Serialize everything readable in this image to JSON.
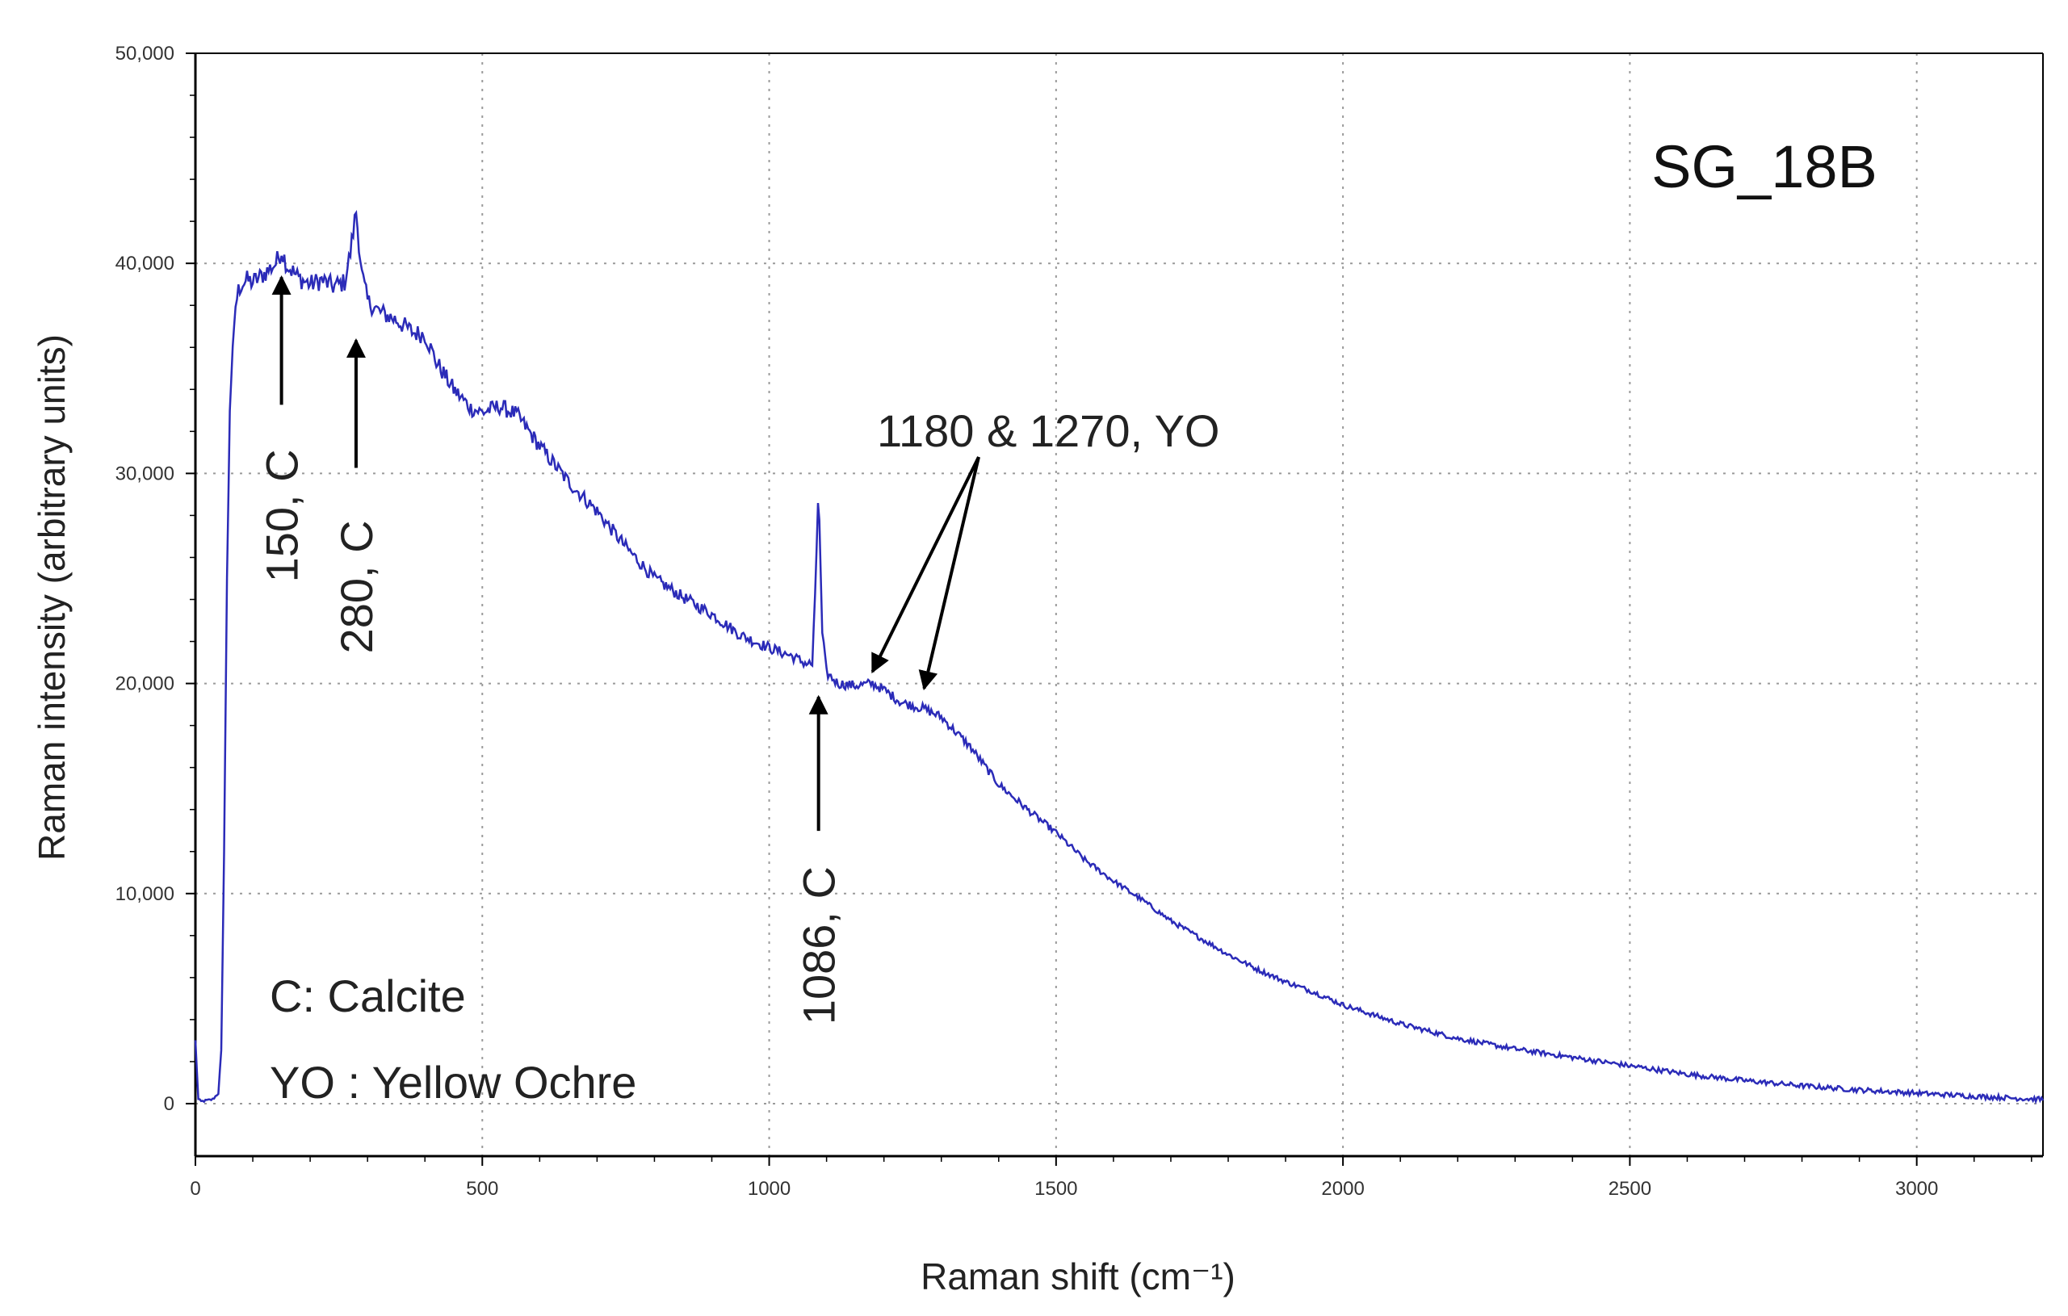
{
  "chart_data": {
    "type": "line",
    "title": "SG_18B",
    "xlabel": "Raman shift (cm⁻¹)",
    "ylabel": "Raman intensity (arbitrary units)",
    "xlim": [
      0,
      3220
    ],
    "ylim": [
      -2500,
      50000
    ],
    "xticks": [
      0,
      500,
      1000,
      1500,
      2000,
      2500,
      3000
    ],
    "xtick_labels": [
      "0",
      "500",
      "1000",
      "1500",
      "2000",
      "2500",
      "3000"
    ],
    "yticks": [
      0,
      10000,
      20000,
      30000,
      40000,
      50000
    ],
    "ytick_labels": [
      "0",
      "10,000",
      "20,000",
      "30,000",
      "40,000",
      "50,000"
    ],
    "grid": true,
    "line_color": "#2b2bb8",
    "series": [
      {
        "x": [
          0,
          5,
          10,
          20,
          30,
          40,
          45,
          50,
          55,
          60,
          65,
          70,
          75,
          80,
          90,
          100,
          120,
          140,
          150,
          160,
          180,
          200,
          220,
          240,
          260,
          270,
          280,
          290,
          300,
          320,
          350,
          380,
          400,
          420,
          450,
          480,
          500,
          530,
          560,
          600,
          650,
          700,
          750,
          800,
          850,
          900,
          950,
          1000,
          1040,
          1060,
          1075,
          1080,
          1086,
          1092,
          1100,
          1120,
          1150,
          1180,
          1200,
          1230,
          1270,
          1300,
          1350,
          1400,
          1450,
          1500,
          1550,
          1600,
          1650,
          1700,
          1750,
          1800,
          1850,
          1900,
          1950,
          2000,
          2100,
          2200,
          2300,
          2400,
          2500,
          2600,
          2700,
          2800,
          2900,
          3000,
          3100,
          3220
        ],
        "y": [
          3000,
          200,
          100,
          150,
          200,
          500,
          2500,
          12000,
          25000,
          33000,
          36000,
          38000,
          38700,
          39000,
          39200,
          39100,
          39500,
          40000,
          40600,
          39900,
          39300,
          39000,
          39200,
          38900,
          39100,
          40500,
          42500,
          39500,
          38200,
          37700,
          37300,
          36700,
          36600,
          35300,
          34000,
          33100,
          32900,
          33200,
          32800,
          31300,
          29600,
          28200,
          26500,
          25000,
          24100,
          23300,
          22300,
          21700,
          21300,
          21000,
          20900,
          24000,
          29600,
          22500,
          20500,
          20000,
          19900,
          20000,
          19700,
          19100,
          18800,
          18400,
          17000,
          15200,
          14000,
          12900,
          11600,
          10600,
          9700,
          8700,
          7900,
          7100,
          6400,
          5800,
          5300,
          4700,
          3800,
          3100,
          2600,
          2200,
          1800,
          1400,
          1100,
          850,
          650,
          500,
          350,
          200
        ]
      }
    ],
    "annotations": [
      {
        "text": "150, C",
        "target_x": 150,
        "target_y": 39800
      },
      {
        "text": "280, C",
        "target_x": 280,
        "target_y": 36800
      },
      {
        "text": "1086, C",
        "target_x": 1086,
        "target_y": 19900
      },
      {
        "text": "1180 & 1270, YO",
        "targets": [
          [
            1180,
            20100
          ],
          [
            1270,
            19300
          ]
        ]
      }
    ],
    "legend_notes": [
      "C: Calcite",
      "YO : Yellow Ochre"
    ]
  }
}
